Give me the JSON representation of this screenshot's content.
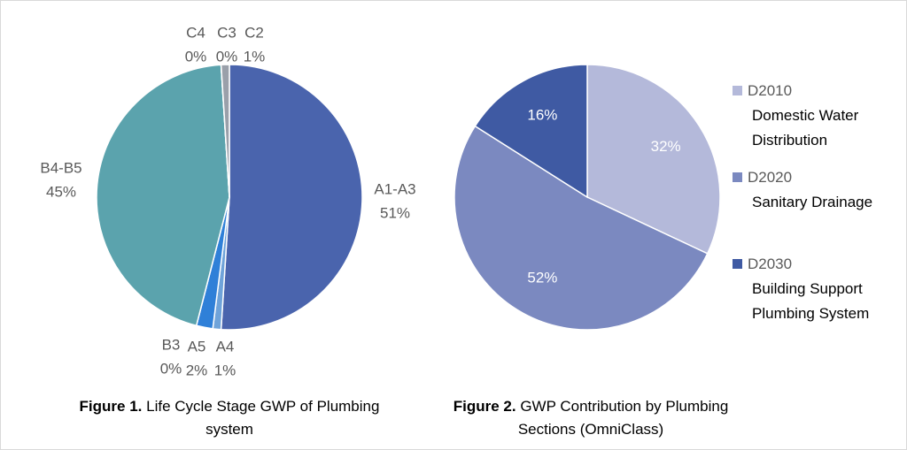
{
  "chart_data": [
    {
      "type": "pie",
      "categories": [
        "A1-A3",
        "A4",
        "A5",
        "B3",
        "B4-B5",
        "C4",
        "C3",
        "C2"
      ],
      "values": [
        51,
        1,
        2,
        0,
        45,
        0,
        0,
        1
      ],
      "value_labels": [
        "51%",
        "1%",
        "2%",
        "0%",
        "45%",
        "0%",
        "0%",
        "1%"
      ],
      "colors": [
        "#4a64ad",
        "#6fa3d9",
        "#2f80d8",
        "#dfe6f2",
        "#5ba3ad",
        "#c9cdd4",
        "#d9dce1",
        "#9aa0aa"
      ],
      "caption_label": "Figure 1.",
      "caption": "Life Cycle Stage GWP of Plumbing system"
    },
    {
      "type": "pie",
      "categories": [
        "D2010",
        "D2020",
        "D2030"
      ],
      "descriptions": [
        "Domestic Water Distribution",
        "Sanitary Drainage",
        "Building Support Plumbing System"
      ],
      "values": [
        32,
        52,
        16
      ],
      "value_labels": [
        "32%",
        "52%",
        "16%"
      ],
      "colors": [
        "#b4b9da",
        "#7b89c0",
        "#3f5aa3"
      ],
      "legend": "right",
      "caption_label": "Figure 2.",
      "caption": "GWP Contribution by Plumbing Sections (OmniClass)"
    }
  ]
}
